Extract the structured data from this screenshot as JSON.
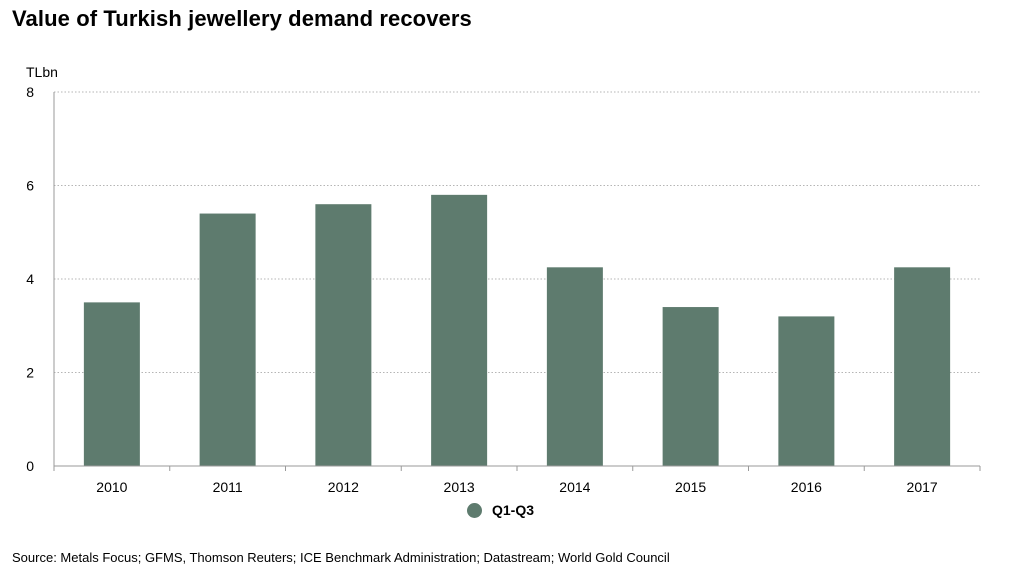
{
  "chart_data": {
    "type": "bar",
    "title": "Value of Turkish jewellery demand recovers",
    "ylabel": "TLbn",
    "xlabel": "",
    "categories": [
      "2010",
      "2011",
      "2012",
      "2013",
      "2014",
      "2015",
      "2016",
      "2017"
    ],
    "series": [
      {
        "name": "Q1-Q3",
        "values": [
          3.5,
          5.4,
          5.6,
          5.8,
          4.25,
          3.4,
          3.2,
          4.25
        ],
        "color": "#5e7b6e"
      }
    ],
    "ylim": [
      0,
      8
    ],
    "yticks": [
      0,
      2,
      4,
      6,
      8
    ],
    "grid": true,
    "legend_position": "bottom-center"
  },
  "source": "Source: Metals Focus; GFMS, Thomson Reuters; ICE Benchmark Administration; Datastream; World Gold Council",
  "colors": {
    "bar": "#5e7b6e",
    "grid": "#b5b5b5",
    "axis": "#9a9a9a"
  }
}
